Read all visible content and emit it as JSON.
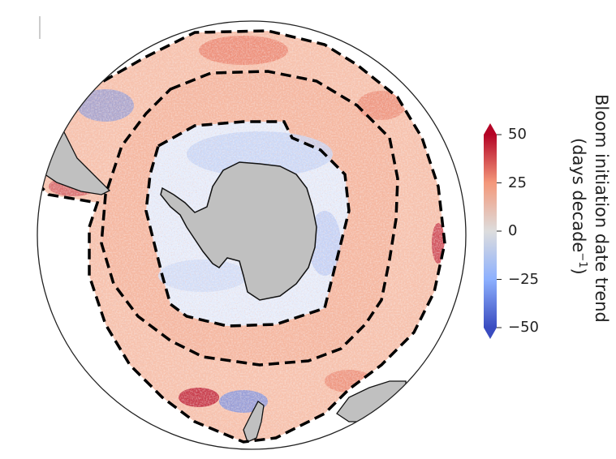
{
  "colorbar": {
    "title_line1": "Bloom initiation date trend",
    "title_line2": "(days decade",
    "title_exponent": "−1",
    "title_close": ")",
    "ticks": [
      "50",
      "25",
      "0",
      "−25",
      "−50"
    ],
    "tick_values": [
      50,
      25,
      0,
      -25,
      -50
    ],
    "range": [
      -50,
      50
    ],
    "extend": "both",
    "colormap": [
      "#3a4cc0",
      "#8db0fe",
      "#dddddd",
      "#f4987a",
      "#b40426"
    ]
  },
  "map": {
    "projection": "south-polar-stereographic",
    "land_color": "#c0c0c0",
    "boundary_style": "dashed black",
    "regions": [
      "outer zone",
      "middle zone",
      "inner zone"
    ]
  }
}
